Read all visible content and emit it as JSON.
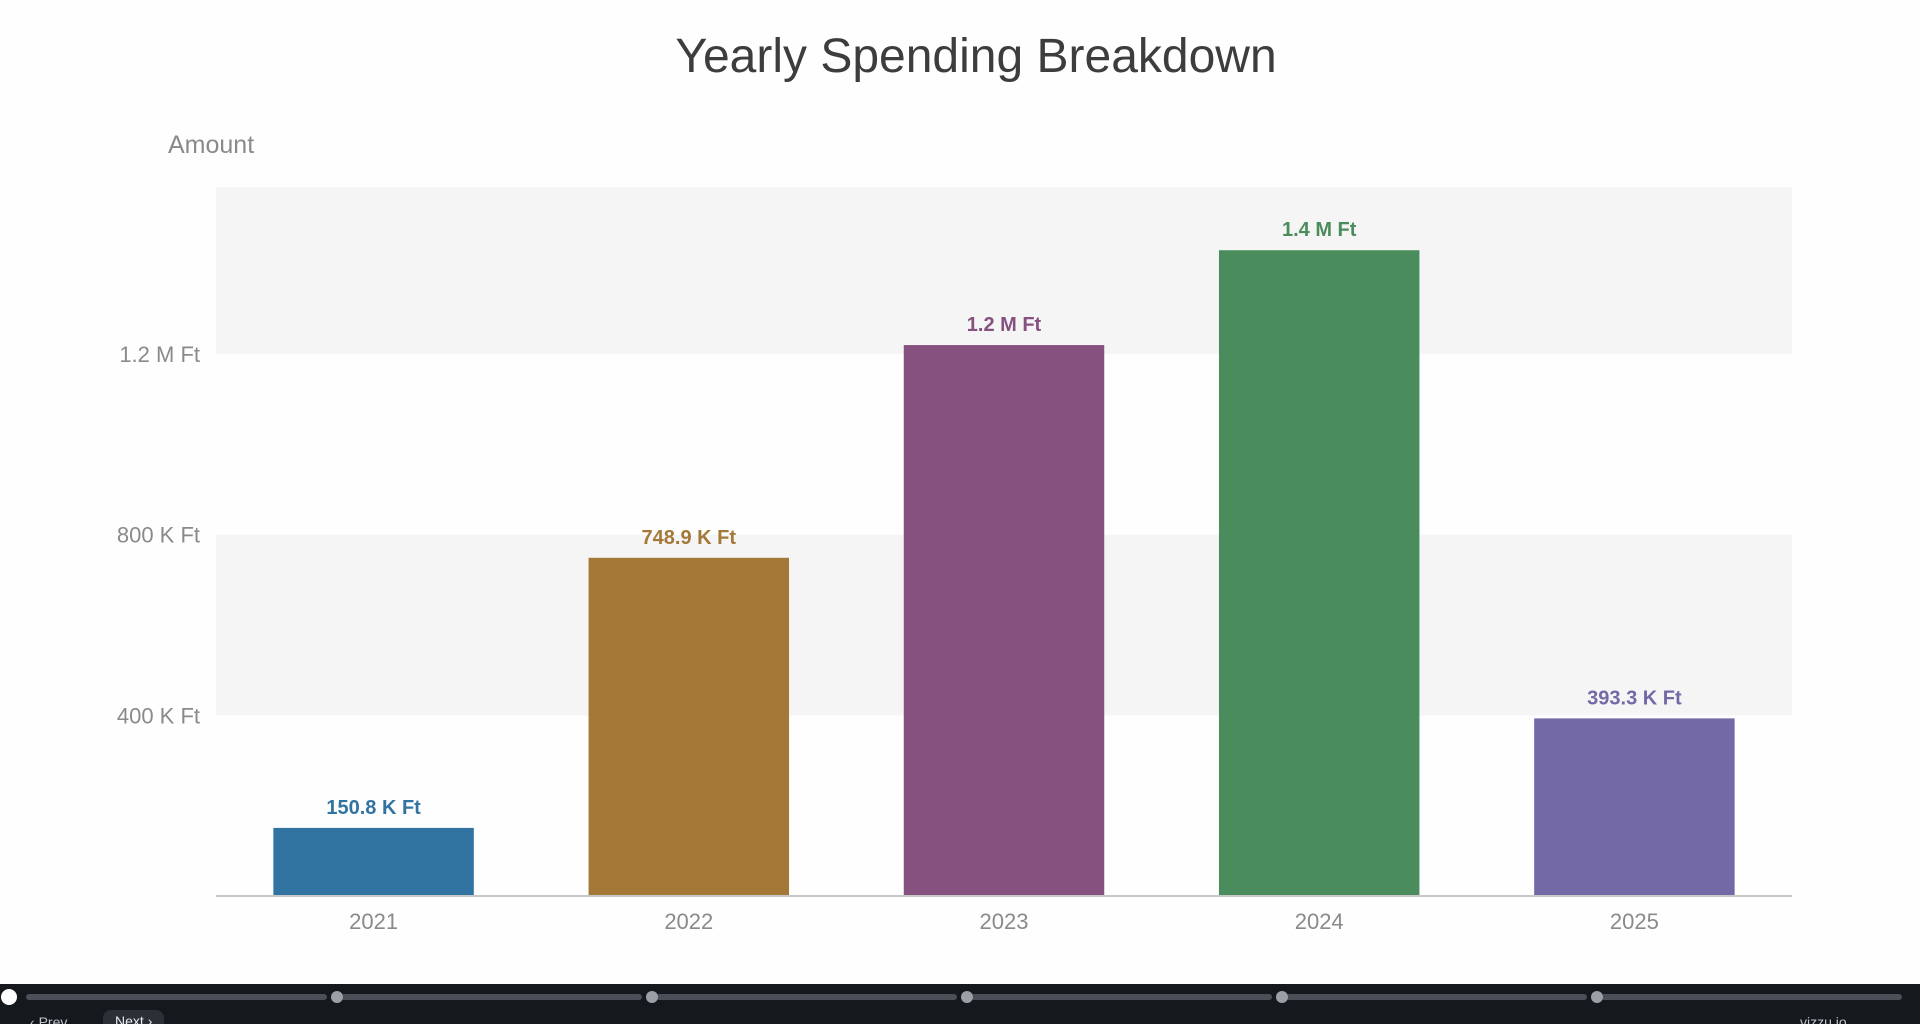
{
  "chart_data": {
    "type": "bar",
    "title": "Yearly Spending Breakdown",
    "ylabel": "Amount",
    "xlabel": "",
    "categories": [
      "2021",
      "2022",
      "2023",
      "2024",
      "2025"
    ],
    "values": [
      150800,
      748900,
      1220000,
      1430000,
      393300
    ],
    "data_labels": [
      "150.8 K Ft",
      "748.9 K Ft",
      "1.2 M Ft",
      "1.4 M Ft",
      "393.3 K Ft"
    ],
    "colors": [
      "#3274a1",
      "#a47837",
      "#86507f",
      "#4a8c5b",
      "#7369a7"
    ],
    "ylim": [
      0,
      1570000
    ],
    "yticks": [
      400000,
      800000,
      1200000
    ],
    "ytick_labels": [
      "400 K Ft",
      "800 K Ft",
      "1.2 M Ft"
    ],
    "grid": "alternating bands",
    "legend": "none"
  },
  "controls": {
    "prev_label": "Prev",
    "next_label": "Next",
    "brand": "vizzu.io"
  }
}
